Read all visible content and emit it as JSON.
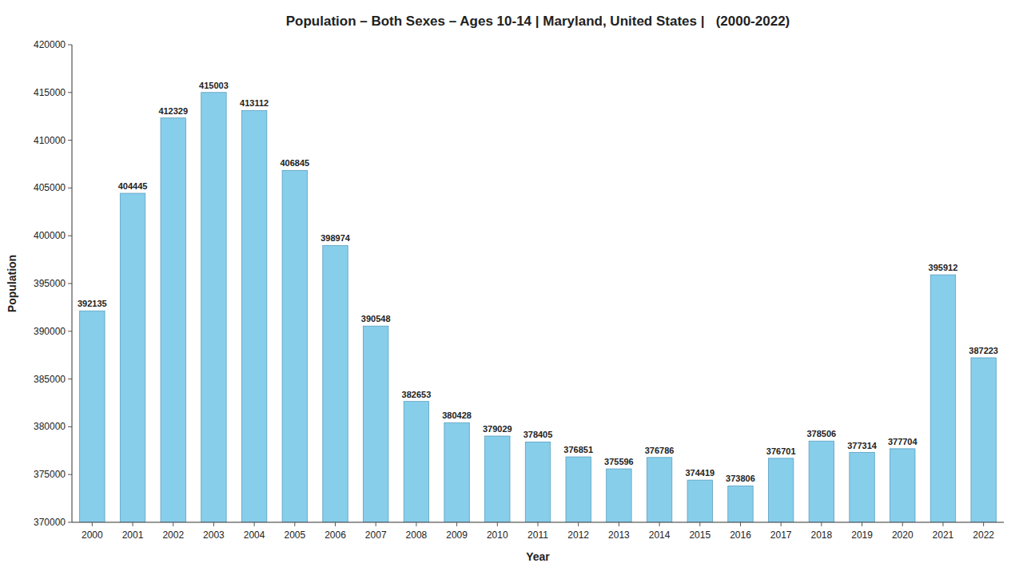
{
  "chart_data": {
    "type": "bar",
    "title": "Population – Both Sexes – Ages 10-14 | Maryland, United States |   (2000-2022)",
    "xlabel": "Year",
    "ylabel": "Population",
    "categories": [
      "2000",
      "2001",
      "2002",
      "2003",
      "2004",
      "2005",
      "2006",
      "2007",
      "2008",
      "2009",
      "2010",
      "2011",
      "2012",
      "2013",
      "2014",
      "2015",
      "2016",
      "2017",
      "2018",
      "2019",
      "2020",
      "2021",
      "2022"
    ],
    "values": [
      392135,
      404445,
      412329,
      415003,
      413112,
      406845,
      398974,
      390548,
      382653,
      380428,
      379029,
      378405,
      376851,
      375596,
      376786,
      374419,
      373806,
      376701,
      378506,
      377314,
      377704,
      395912,
      387223
    ],
    "color": "#87CEEB",
    "ylim": [
      370000,
      420000
    ],
    "yticks": [
      370000,
      375000,
      380000,
      385000,
      390000,
      395000,
      400000,
      405000,
      410000,
      415000,
      420000
    ],
    "grid": false,
    "data_labels": true
  }
}
